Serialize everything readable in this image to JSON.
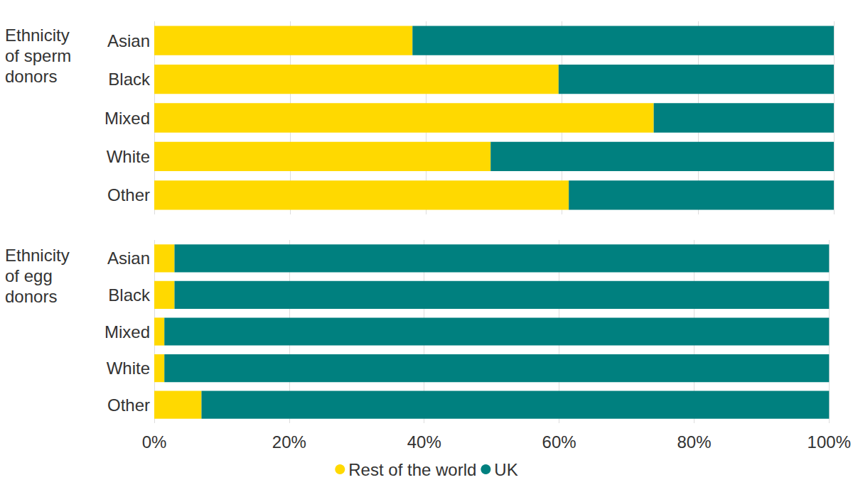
{
  "chart_data": [
    {
      "type": "bar",
      "title": "Ethnicity of sperm donors",
      "orientation": "horizontal",
      "stacked": true,
      "grid": true,
      "tick_labels": "y",
      "categories": [
        "Asian",
        "Black",
        "Mixed",
        "White",
        "Other"
      ],
      "series": [
        {
          "name": "Rest of the world",
          "color": "#FFD900",
          "values": [
            38,
            59.5,
            73.5,
            49.5,
            61
          ]
        },
        {
          "name": "UK",
          "color": "#00807F",
          "values": [
            62,
            40.5,
            26.5,
            50.5,
            39
          ]
        }
      ],
      "xlim": [
        0,
        100
      ],
      "xticks": [
        {
          "value": 0,
          "label": "0%"
        },
        {
          "value": 20,
          "label": "20%"
        },
        {
          "value": 40,
          "label": "40%"
        },
        {
          "value": 60,
          "label": "60%"
        },
        {
          "value": 80,
          "label": "80%"
        },
        {
          "value": 100,
          "label": "100%"
        }
      ]
    },
    {
      "type": "bar",
      "title": "Ethnicity of egg donors",
      "orientation": "horizontal",
      "stacked": true,
      "grid": true,
      "legend": "bottom",
      "categories": [
        "Asian",
        "Black",
        "Mixed",
        "White",
        "Other"
      ],
      "series": [
        {
          "name": "Rest of the world",
          "color": "#FFD900",
          "values": [
            3,
            3,
            1.5,
            1.5,
            7
          ]
        },
        {
          "name": "UK",
          "color": "#00807F",
          "values": [
            97,
            97,
            98.5,
            98.5,
            93
          ]
        }
      ],
      "xlim": [
        0,
        100
      ],
      "xticks": [
        {
          "value": 0,
          "label": "0%"
        },
        {
          "value": 20,
          "label": "20%"
        },
        {
          "value": 40,
          "label": "40%"
        },
        {
          "value": 60,
          "label": "60%"
        },
        {
          "value": 80,
          "label": "80%"
        },
        {
          "value": 100,
          "label": "100%"
        }
      ]
    }
  ]
}
